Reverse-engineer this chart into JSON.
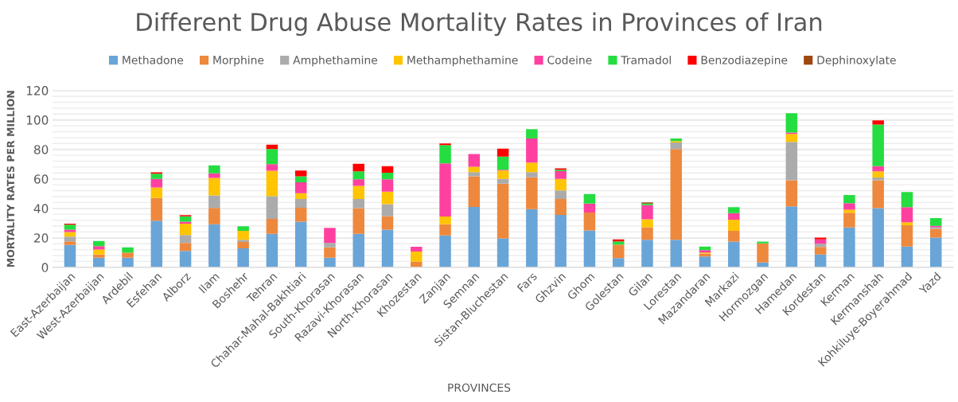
{
  "chart_data": {
    "type": "bar",
    "stacked": true,
    "title": "Different Drug Abuse Mortality Rates in Provinces of Iran",
    "xlabel": "PROVINCES",
    "ylabel": "MORTALITY RATES PER MILLION",
    "categories": [
      "East-Azerbaijan",
      "West-Azerbaijan",
      "Ardebil",
      "Esfehan",
      "Alborz",
      "Ilam",
      "Boshehr",
      "Tehran",
      "Chahar-Mahal-Bakhtiari",
      "South-Khorasan",
      "Razavi-Khorasan",
      "North-Khorasan",
      "Khozestan",
      "Zanjan",
      "Semnan",
      "Sistan-Bluchestan",
      "Fars",
      "Ghzvin",
      "Ghom",
      "Golestan",
      "Gilan",
      "Lorestan",
      "Mazandaran",
      "Markazi",
      "Hormozgan",
      "Hamedan",
      "Kordestan",
      "Kerman",
      "Kermanshah",
      "Kohkiluye-Boyerahmad",
      "Yazd"
    ],
    "series": [
      {
        "name": "Methadone",
        "color": "#6aa5d8",
        "values": [
          15.2,
          6.5,
          6.5,
          31.6,
          11.1,
          29.2,
          12.9,
          22.7,
          31.0,
          6.5,
          22.7,
          25.6,
          0,
          21.6,
          41.0,
          19.6,
          39.4,
          35.5,
          25.0,
          6.2,
          18.7,
          18.7,
          7.3,
          17.4,
          3.3,
          41.3,
          8.7,
          27.0,
          40.1,
          14.1,
          20.1
        ]
      },
      {
        "name": "Morphine",
        "color": "#ee883d",
        "values": [
          2.4,
          2.2,
          3.5,
          15.4,
          5.4,
          11.1,
          4.3,
          10.1,
          9.4,
          7.1,
          17.4,
          9.0,
          3.8,
          7.6,
          20.8,
          37.2,
          21.7,
          10.9,
          12.2,
          9.2,
          8.5,
          61.5,
          2.1,
          7.3,
          13.0,
          17.8,
          5.1,
          10.0,
          19.0,
          14.4,
          6.0
        ]
      },
      {
        "name": "Amphethamine",
        "color": "#ababab",
        "values": [
          3.3,
          null,
          0,
          0,
          5.4,
          8.5,
          1.5,
          15.4,
          6.0,
          2.9,
          6.3,
          8.2,
          0,
          0,
          2.8,
          3.2,
          3.5,
          5.8,
          0,
          0,
          null,
          4.5,
          0,
          0,
          0,
          26.0,
          2.2,
          0,
          1.8,
          0,
          1.1
        ]
      },
      {
        "name": "Methamphethamine",
        "color": "#ffc402",
        "values": [
          3.1,
          3.3,
          0,
          7.2,
          7.7,
          11.8,
          6.1,
          17.3,
          3.8,
          0,
          8.9,
          8.5,
          6.9,
          5.3,
          3.6,
          5.7,
          6.5,
          7.8,
          0,
          0,
          5.4,
          0.9,
          0.6,
          7.6,
          0,
          5.4,
          0,
          2.0,
          4.2,
          2.0,
          0
        ]
      },
      {
        "name": "Codeine",
        "color": "#ff40a0",
        "values": [
          1.6,
          2.3,
          0,
          5.8,
          1.4,
          3.2,
          0,
          4.5,
          7.5,
          10.3,
          4.4,
          8.4,
          3.3,
          36.0,
          8.7,
          0.5,
          16.3,
          5.3,
          6.1,
          0,
          9.6,
          0,
          1.6,
          4.5,
          0,
          0.9,
          3.0,
          4.5,
          3.5,
          10.3,
          0.9
        ]
      },
      {
        "name": "Tramadol",
        "color": "#24dd40",
        "values": [
          3.4,
          3.6,
          3.6,
          3.5,
          3.6,
          5.3,
          3.1,
          10.2,
          4.0,
          0,
          5.4,
          4.5,
          0,
          12.4,
          0,
          8.9,
          6.4,
          0.9,
          6.4,
          2.2,
          1.1,
          1.8,
          2.5,
          4.0,
          1.1,
          13.2,
          0,
          5.6,
          28.2,
          10.3,
          5.3
        ]
      },
      {
        "name": "Benzodiazepine",
        "color": "#ff0000",
        "values": [
          0.6,
          0,
          0,
          0.9,
          0.8,
          0,
          0,
          3.0,
          4.0,
          0,
          5.1,
          4.4,
          0,
          1.1,
          0,
          5.4,
          0,
          0.9,
          0,
          1.4,
          0,
          0,
          0,
          0,
          0,
          0,
          1.1,
          0,
          2.9,
          0,
          0
        ]
      },
      {
        "name": "Dephinoxylate",
        "color": "#9e480e",
        "values": [
          0,
          0,
          0,
          0,
          0,
          0,
          0,
          0,
          0,
          0,
          0,
          0,
          0,
          0,
          0,
          0,
          0,
          0,
          0,
          0,
          0.8,
          0,
          0,
          0,
          0,
          0,
          0,
          0,
          0,
          0,
          0
        ]
      }
    ],
    "ylim": [
      0,
      120
    ],
    "yticks": [
      0,
      {
        "value": 4,
        "label": null
      },
      {
        "value": 8,
        "label": null
      },
      {
        "value": 12,
        "label": null
      },
      {
        "value": 16,
        "label": null
      },
      20,
      {
        "value": 24,
        "label": null
      },
      {
        "value": 28,
        "label": null
      },
      {
        "value": 32,
        "label": null
      },
      {
        "value": 36,
        "label": null
      },
      40,
      {
        "value": 44,
        "label": null
      },
      {
        "value": 48,
        "label": null
      },
      {
        "value": 52,
        "label": null
      },
      {
        "value": 56,
        "label": null
      },
      60,
      {
        "value": 64,
        "label": null
      },
      {
        "value": 68,
        "label": null
      },
      {
        "value": 72,
        "label": null
      },
      {
        "value": 76,
        "label": null
      },
      80,
      {
        "value": 84,
        "label": null
      },
      {
        "value": 88,
        "label": null
      },
      {
        "value": 92,
        "label": null
      },
      {
        "value": 96,
        "label": null
      },
      100,
      {
        "value": 104,
        "label": null
      },
      {
        "value": 108,
        "label": null
      },
      {
        "value": 112,
        "label": null
      },
      {
        "value": 116,
        "label": null
      },
      120
    ],
    "grid": "y",
    "legend": "top"
  }
}
